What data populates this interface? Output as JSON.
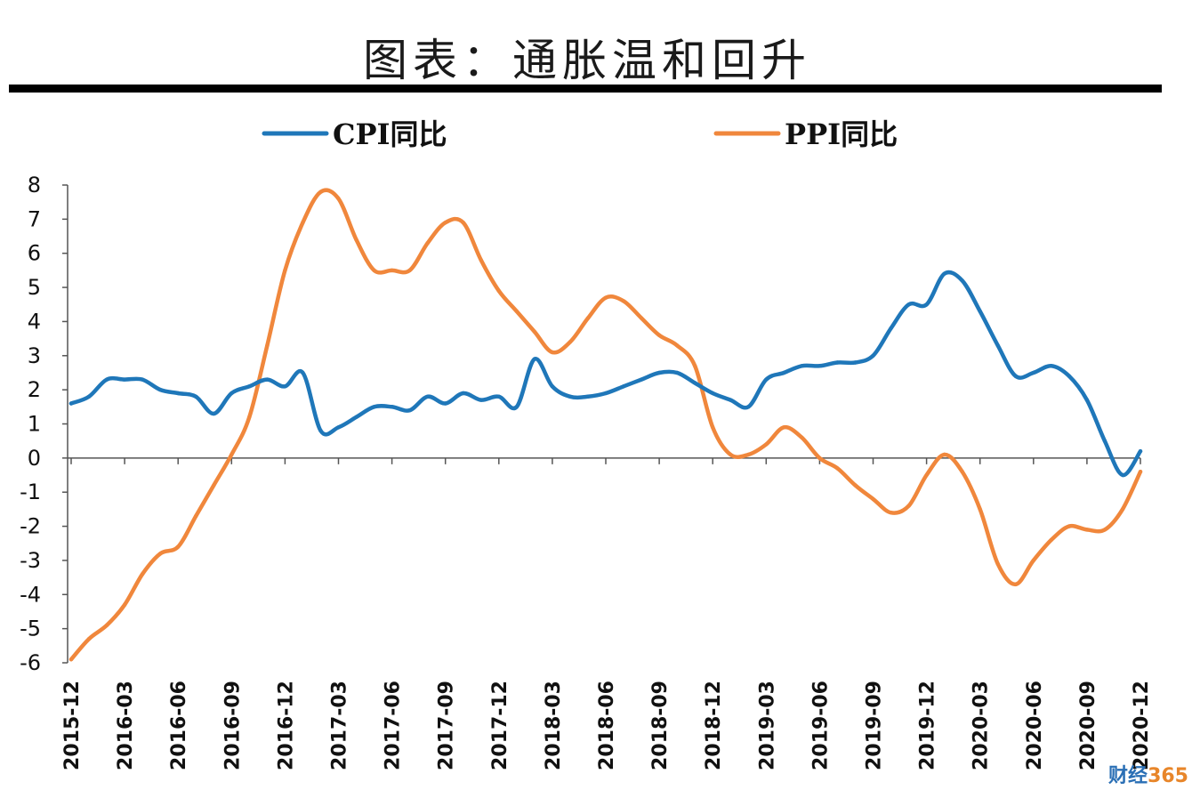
{
  "title": "图表：通胀温和回升",
  "watermark": {
    "cn": "财经",
    "num": "365"
  },
  "colors": {
    "cpi": "#1f77b9",
    "ppi": "#f0873c",
    "axis": "#555555",
    "rule": "#000000"
  },
  "chart_data": {
    "type": "line",
    "ylim": [
      -6,
      8
    ],
    "yticks": [
      8,
      7,
      6,
      5,
      4,
      3,
      2,
      1,
      0,
      -1,
      -2,
      -3,
      -4,
      -5,
      -6
    ],
    "x": [
      "2015-12",
      "2016-01",
      "2016-02",
      "2016-03",
      "2016-04",
      "2016-05",
      "2016-06",
      "2016-07",
      "2016-08",
      "2016-09",
      "2016-10",
      "2016-11",
      "2016-12",
      "2017-01",
      "2017-02",
      "2017-03",
      "2017-04",
      "2017-05",
      "2017-06",
      "2017-07",
      "2017-08",
      "2017-09",
      "2017-10",
      "2017-11",
      "2017-12",
      "2018-01",
      "2018-02",
      "2018-03",
      "2018-04",
      "2018-05",
      "2018-06",
      "2018-07",
      "2018-08",
      "2018-09",
      "2018-10",
      "2018-11",
      "2018-12",
      "2019-01",
      "2019-02",
      "2019-03",
      "2019-04",
      "2019-05",
      "2019-06",
      "2019-07",
      "2019-08",
      "2019-09",
      "2019-10",
      "2019-11",
      "2019-12",
      "2020-01",
      "2020-02",
      "2020-03",
      "2020-04",
      "2020-05",
      "2020-06",
      "2020-07",
      "2020-08",
      "2020-09",
      "2020-10",
      "2020-11",
      "2020-12"
    ],
    "xtick_labels": [
      "2015-12",
      "2016-03",
      "2016-06",
      "2016-09",
      "2016-12",
      "2017-03",
      "2017-06",
      "2017-09",
      "2017-12",
      "2018-03",
      "2018-06",
      "2018-09",
      "2018-12",
      "2019-03",
      "2019-06",
      "2019-09",
      "2019-12",
      "2020-03",
      "2020-06",
      "2020-09",
      "2020-12"
    ],
    "legend_position": "top",
    "series": [
      {
        "name": "CPI同比",
        "values": [
          1.6,
          1.8,
          2.3,
          2.3,
          2.3,
          2.0,
          1.9,
          1.8,
          1.3,
          1.9,
          2.1,
          2.3,
          2.1,
          2.5,
          0.8,
          0.9,
          1.2,
          1.5,
          1.5,
          1.4,
          1.8,
          1.6,
          1.9,
          1.7,
          1.8,
          1.5,
          2.9,
          2.1,
          1.8,
          1.8,
          1.9,
          2.1,
          2.3,
          2.5,
          2.5,
          2.2,
          1.9,
          1.7,
          1.5,
          2.3,
          2.5,
          2.7,
          2.7,
          2.8,
          2.8,
          3.0,
          3.8,
          4.5,
          4.5,
          5.4,
          5.2,
          4.3,
          3.3,
          2.4,
          2.5,
          2.7,
          2.4,
          1.7,
          0.5,
          -0.5,
          0.2
        ]
      },
      {
        "name": "PPI同比",
        "values": [
          -5.9,
          -5.3,
          -4.9,
          -4.3,
          -3.4,
          -2.8,
          -2.6,
          -1.7,
          -0.8,
          0.1,
          1.2,
          3.3,
          5.5,
          6.9,
          7.8,
          7.6,
          6.4,
          5.5,
          5.5,
          5.5,
          6.3,
          6.9,
          6.9,
          5.8,
          4.9,
          4.3,
          3.7,
          3.1,
          3.4,
          4.1,
          4.7,
          4.6,
          4.1,
          3.6,
          3.3,
          2.7,
          0.9,
          0.1,
          0.1,
          0.4,
          0.9,
          0.6,
          0.0,
          -0.3,
          -0.8,
          -1.2,
          -1.6,
          -1.4,
          -0.5,
          0.1,
          -0.4,
          -1.5,
          -3.1,
          -3.7,
          -3.0,
          -2.4,
          -2.0,
          -2.1,
          -2.1,
          -1.5,
          -0.4
        ]
      }
    ]
  }
}
